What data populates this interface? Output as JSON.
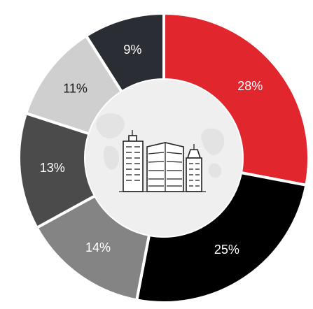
{
  "chart_data": {
    "type": "pie",
    "donut": true,
    "categories": [
      "28%",
      "25%",
      "14%",
      "13%",
      "11%",
      "9%"
    ],
    "values": [
      28,
      25,
      14,
      13,
      11,
      9
    ],
    "data_labels": [
      "28%",
      "25%",
      "14%",
      "13%",
      "11%",
      "9%"
    ],
    "colors": [
      "#e2262d",
      "#000000",
      "#848484",
      "#4b4b4b",
      "#cfcfcf",
      "#2a2d33"
    ],
    "label_colors": [
      "#ffffff",
      "#ffffff",
      "#ffffff",
      "#ffffff",
      "#1a1a1a",
      "#ffffff"
    ],
    "start_angle_deg": 0,
    "direction": "clockwise",
    "center_icon": "city-buildings-icon",
    "center_color": "#efefef",
    "legend": "none"
  }
}
